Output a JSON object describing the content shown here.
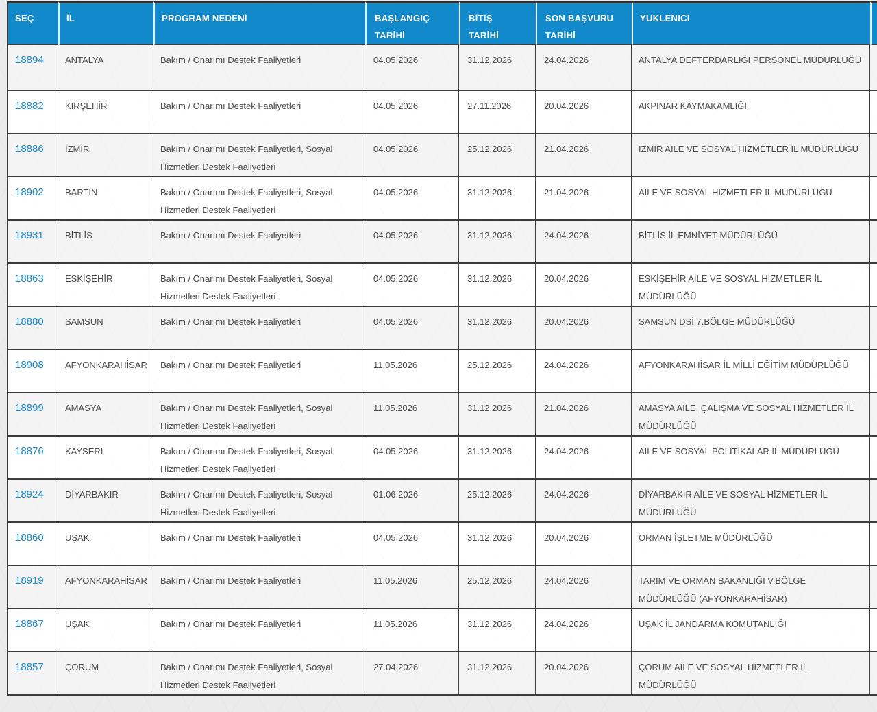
{
  "colors": {
    "header_bg": "#1289ca",
    "header_text": "#ffffff",
    "link": "#1e8bc9",
    "body_text": "#4a4a4a",
    "border": "#3c3c3c",
    "header_sep": "#e9f4fb",
    "row_alt_bg": "#f4f4f4",
    "row_bg": "#ffffff",
    "page_bg": "#ebebeb"
  },
  "table": {
    "columns": [
      {
        "key": "sec",
        "label": "SEÇ"
      },
      {
        "key": "il",
        "label": "İL"
      },
      {
        "key": "program",
        "label": "PROGRAM NEDENİ"
      },
      {
        "key": "baslangic",
        "label": "BAŞLANGIÇ\nTARİHİ"
      },
      {
        "key": "bitis",
        "label": "BİTİŞ\nTARİHİ"
      },
      {
        "key": "son_basvuru",
        "label": "SON BAŞVURU\nTARİHİ"
      },
      {
        "key": "yuklenici",
        "label": "YUKLENICI"
      }
    ],
    "rows": [
      {
        "sec": "18894",
        "il": "ANTALYA",
        "program": "Bakım / Onarımı Destek Faaliyetleri",
        "baslangic": "04.05.2026",
        "bitis": "31.12.2026",
        "son_basvuru": "24.04.2026",
        "yuklenici": "ANTALYA DEFTERDARLIĞI PERSONEL MÜDÜRLÜĞÜ"
      },
      {
        "sec": "18882",
        "il": "KIRŞEHİR",
        "program": "Bakım / Onarımı Destek Faaliyetleri",
        "baslangic": "04.05.2026",
        "bitis": "27.11.2026",
        "son_basvuru": "20.04.2026",
        "yuklenici": "AKPINAR KAYMAKAMLIĞI"
      },
      {
        "sec": "18886",
        "il": "İZMİR",
        "program": "Bakım / Onarımı Destek Faaliyetleri, Sosyal Hizmetleri Destek Faaliyetleri",
        "baslangic": "04.05.2026",
        "bitis": "25.12.2026",
        "son_basvuru": "21.04.2026",
        "yuklenici": "İZMİR AİLE VE SOSYAL HİZMETLER İL MÜDÜRLÜĞÜ"
      },
      {
        "sec": "18902",
        "il": "BARTIN",
        "program": "Bakım / Onarımı Destek Faaliyetleri, Sosyal Hizmetleri Destek Faaliyetleri",
        "baslangic": "04.05.2026",
        "bitis": "31.12.2026",
        "son_basvuru": "21.04.2026",
        "yuklenici": "AİLE VE SOSYAL HİZMETLER İL MÜDÜRLÜĞÜ"
      },
      {
        "sec": "18931",
        "il": "BİTLİS",
        "program": "Bakım / Onarımı Destek Faaliyetleri",
        "baslangic": "04.05.2026",
        "bitis": "31.12.2026",
        "son_basvuru": "24.04.2026",
        "yuklenici": "BİTLİS İL EMNİYET MÜDÜRLÜĞÜ"
      },
      {
        "sec": "18863",
        "il": "ESKİŞEHİR",
        "program": "Bakım / Onarımı Destek Faaliyetleri, Sosyal Hizmetleri Destek Faaliyetleri",
        "baslangic": "04.05.2026",
        "bitis": "31.12.2026",
        "son_basvuru": "20.04.2026",
        "yuklenici": "ESKİŞEHİR AİLE VE SOSYAL HİZMETLER İL MÜDÜRLÜĞÜ"
      },
      {
        "sec": "18880",
        "il": "SAMSUN",
        "program": "Bakım / Onarımı Destek Faaliyetleri",
        "baslangic": "04.05.2026",
        "bitis": "31.12.2026",
        "son_basvuru": "20.04.2026",
        "yuklenici": "SAMSUN DSİ 7.BÖLGE MÜDÜRLÜĞÜ"
      },
      {
        "sec": "18908",
        "il": "AFYONKARAHİSAR",
        "program": "Bakım / Onarımı Destek Faaliyetleri",
        "baslangic": "11.05.2026",
        "bitis": "25.12.2026",
        "son_basvuru": "24.04.2026",
        "yuklenici": "AFYONKARAHİSAR İL MİLLİ EĞİTİM MÜDÜRLÜĞÜ"
      },
      {
        "sec": "18899",
        "il": "AMASYA",
        "program": "Bakım / Onarımı Destek Faaliyetleri, Sosyal Hizmetleri Destek Faaliyetleri",
        "baslangic": "11.05.2026",
        "bitis": "31.12.2026",
        "son_basvuru": "21.04.2026",
        "yuklenici": "AMASYA AİLE, ÇALIŞMA VE SOSYAL HİZMETLER İL MÜDÜRLÜĞÜ"
      },
      {
        "sec": "18876",
        "il": "KAYSERİ",
        "program": "Bakım / Onarımı Destek Faaliyetleri, Sosyal Hizmetleri Destek Faaliyetleri",
        "baslangic": "04.05.2026",
        "bitis": "31.12.2026",
        "son_basvuru": "24.04.2026",
        "yuklenici": "AİLE VE SOSYAL POLİTİKALAR İL MÜDÜRLÜĞÜ"
      },
      {
        "sec": "18924",
        "il": "DİYARBAKIR",
        "program": "Bakım / Onarımı Destek Faaliyetleri, Sosyal Hizmetleri Destek Faaliyetleri",
        "baslangic": "01.06.2026",
        "bitis": "25.12.2026",
        "son_basvuru": "24.04.2026",
        "yuklenici": "DİYARBAKIR AİLE VE SOSYAL HİZMETLER İL MÜDÜRLÜĞÜ"
      },
      {
        "sec": "18860",
        "il": "UŞAK",
        "program": "Bakım / Onarımı Destek Faaliyetleri",
        "baslangic": "04.05.2026",
        "bitis": "31.12.2026",
        "son_basvuru": "20.04.2026",
        "yuklenici": "ORMAN İŞLETME MÜDÜRLÜĞÜ"
      },
      {
        "sec": "18919",
        "il": "AFYONKARAHİSAR",
        "program": "Bakım / Onarımı Destek Faaliyetleri",
        "baslangic": "11.05.2026",
        "bitis": "25.12.2026",
        "son_basvuru": "24.04.2026",
        "yuklenici": "TARIM VE ORMAN BAKANLIĞI V.BÖLGE MÜDÜRLÜĞÜ (AFYONKARAHİSAR)"
      },
      {
        "sec": "18867",
        "il": "UŞAK",
        "program": "Bakım / Onarımı Destek Faaliyetleri",
        "baslangic": "11.05.2026",
        "bitis": "31.12.2026",
        "son_basvuru": "24.04.2026",
        "yuklenici": "UŞAK İL JANDARMA KOMUTANLIĞI"
      },
      {
        "sec": "18857",
        "il": "ÇORUM",
        "program": "Bakım / Onarımı Destek Faaliyetleri, Sosyal Hizmetleri Destek Faaliyetleri",
        "baslangic": "27.04.2026",
        "bitis": "31.12.2026",
        "son_basvuru": "20.04.2026",
        "yuklenici": "ÇORUM AİLE VE SOSYAL HİZMETLER İL MÜDÜRLÜĞÜ"
      }
    ]
  }
}
